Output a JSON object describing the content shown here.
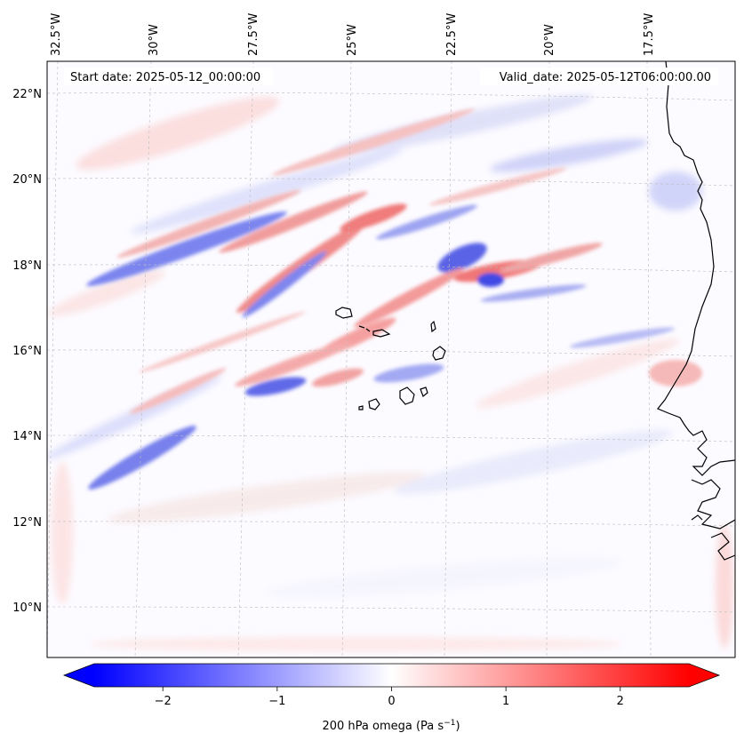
{
  "map": {
    "start_date_label": "Start date: 2025-05-12_00:00:00",
    "valid_date_label": "Valid_date: 2025-05-12T06:00:00.00",
    "longitude_labels": [
      "32.5°W",
      "30°W",
      "27.5°W",
      "25°W",
      "22.5°W",
      "20°W",
      "17.5°W"
    ],
    "latitude_labels": [
      "22°N",
      "20°N",
      "18°N",
      "16°N",
      "14°N",
      "12°N",
      "10°N"
    ],
    "field": "200 hPa omega",
    "field_units": "Pa s",
    "field_units_exponent": "−1"
  },
  "colorbar": {
    "ticks": [
      -2,
      -1,
      0,
      1,
      2
    ],
    "tick_labels": [
      "−2",
      "−1",
      "0",
      "1",
      "2"
    ],
    "range": [
      -2.6,
      2.6
    ],
    "extend": "both",
    "colormap": "bwr",
    "colors": {
      "negative": "#0000ff",
      "zero": "#ffffff",
      "positive": "#ff0000"
    }
  },
  "colors": {
    "coastline": "#000000",
    "gridline": "#bbbbbb",
    "frame": "#000000"
  }
}
